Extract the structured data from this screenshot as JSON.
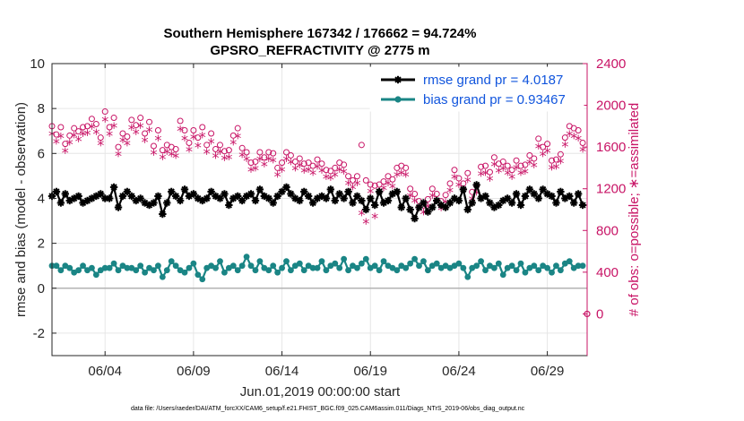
{
  "chart_data": {
    "type": "line",
    "title": "Southern Hemisphere 167342 / 176662 = 94.724%",
    "subtitle": "GPSRO_REFRACTIVITY @ 2775 m",
    "xlabel": "Jun.01,2019 00:00:00 start",
    "ylabel": "rmse and bias (model - observation)",
    "y2label": "# of obs: o=possible; ∗=assimilated",
    "footnote": "data file: /Users/raeder/DAI/ATM_forcXX/CAM6_setup/f.e21.FHIST_BGC.f09_025.CAM6assim.011/Diags_NTrS_2019-06/obs_diag_output.nc",
    "xlim": [
      1,
      31.25
    ],
    "ylim": [
      -3,
      10
    ],
    "y2lim": [
      -400,
      2400
    ],
    "x_ticks": [
      4,
      9,
      14,
      19,
      24,
      29
    ],
    "x_tick_labels": [
      "06/04",
      "06/09",
      "06/14",
      "06/19",
      "06/24",
      "06/29"
    ],
    "y_ticks": [
      "-2",
      "0",
      "2",
      "4",
      "6",
      "8",
      "10"
    ],
    "y2_ticks": [
      "0",
      "400",
      "800",
      "1200",
      "1600",
      "2000",
      "2400"
    ],
    "grid": true,
    "legend_position": "top-right",
    "series": [
      {
        "name": "rmse",
        "legend": "rmse grand pr = 4.0187",
        "color": "#000000",
        "axis": "left",
        "x": [
          1.0,
          1.25,
          1.5,
          1.75,
          2.0,
          2.25,
          2.5,
          2.75,
          3.0,
          3.25,
          3.5,
          3.75,
          4.0,
          4.25,
          4.5,
          4.75,
          5.0,
          5.25,
          5.5,
          5.75,
          6.0,
          6.25,
          6.5,
          6.75,
          7.0,
          7.25,
          7.5,
          7.75,
          8.0,
          8.25,
          8.5,
          8.75,
          9.0,
          9.25,
          9.5,
          9.75,
          10.0,
          10.25,
          10.5,
          10.75,
          11.0,
          11.25,
          11.5,
          11.75,
          12.0,
          12.25,
          12.5,
          12.75,
          13.0,
          13.25,
          13.5,
          13.75,
          14.0,
          14.25,
          14.5,
          14.75,
          15.0,
          15.25,
          15.5,
          15.75,
          16.0,
          16.25,
          16.5,
          16.75,
          17.0,
          17.25,
          17.5,
          17.75,
          18.0,
          18.25,
          18.5,
          18.75,
          19.0,
          19.25,
          19.5,
          19.75,
          20.0,
          20.25,
          20.5,
          20.75,
          21.0,
          21.25,
          21.5,
          21.75,
          22.0,
          22.25,
          22.5,
          22.75,
          23.0,
          23.25,
          23.5,
          23.75,
          24.0,
          24.25,
          24.5,
          24.75,
          25.0,
          25.25,
          25.5,
          25.75,
          26.0,
          26.25,
          26.5,
          26.75,
          27.0,
          27.25,
          27.5,
          27.75,
          28.0,
          28.25,
          28.5,
          28.75,
          29.0,
          29.25,
          29.5,
          29.75,
          30.0,
          30.25,
          30.5,
          30.75,
          31.0
        ],
        "values": [
          4.1,
          4.3,
          3.8,
          4.2,
          3.9,
          4.0,
          4.1,
          3.8,
          3.9,
          4.0,
          4.1,
          4.2,
          4.0,
          4.0,
          4.5,
          3.6,
          4.1,
          4.3,
          4.1,
          3.9,
          4.0,
          3.8,
          3.7,
          3.8,
          4.1,
          3.3,
          3.8,
          4.3,
          4.1,
          3.9,
          4.4,
          4.1,
          4.2,
          4.0,
          3.9,
          4.0,
          4.3,
          4.1,
          4.0,
          4.2,
          3.7,
          4.0,
          4.1,
          3.9,
          4.1,
          4.2,
          3.9,
          4.4,
          4.1,
          4.0,
          3.8,
          4.1,
          4.3,
          4.5,
          4.2,
          4.0,
          3.9,
          4.3,
          4.1,
          3.8,
          4.0,
          4.1,
          4.0,
          4.4,
          3.9,
          4.2,
          4.0,
          4.3,
          3.8,
          4.1,
          3.9,
          3.5,
          4.0,
          3.7,
          4.3,
          3.8,
          3.9,
          4.2,
          4.3,
          3.6,
          4.0,
          3.5,
          3.1,
          3.6,
          3.8,
          3.4,
          3.6,
          3.9,
          3.7,
          3.6,
          3.8,
          4.0,
          3.9,
          4.4,
          3.5,
          3.8,
          4.6,
          4.0,
          4.1,
          3.8,
          3.6,
          3.7,
          3.9,
          4.0,
          3.8,
          4.2,
          3.7,
          4.1,
          4.4,
          4.2,
          4.0,
          4.4,
          4.2,
          4.1,
          3.8,
          4.3,
          4.0,
          4.1,
          3.8,
          4.2,
          3.7
        ],
        "grand_mean": 4.0187
      },
      {
        "name": "bias",
        "legend": "bias grand pr = 0.93467",
        "color": "#1a8585",
        "axis": "left",
        "x": [
          1.0,
          1.25,
          1.5,
          1.75,
          2.0,
          2.25,
          2.5,
          2.75,
          3.0,
          3.25,
          3.5,
          3.75,
          4.0,
          4.25,
          4.5,
          4.75,
          5.0,
          5.25,
          5.5,
          5.75,
          6.0,
          6.25,
          6.5,
          6.75,
          7.0,
          7.25,
          7.5,
          7.75,
          8.0,
          8.25,
          8.5,
          8.75,
          9.0,
          9.25,
          9.5,
          9.75,
          10.0,
          10.25,
          10.5,
          10.75,
          11.0,
          11.25,
          11.5,
          11.75,
          12.0,
          12.25,
          12.5,
          12.75,
          13.0,
          13.25,
          13.5,
          13.75,
          14.0,
          14.25,
          14.5,
          14.75,
          15.0,
          15.25,
          15.5,
          15.75,
          16.0,
          16.25,
          16.5,
          16.75,
          17.0,
          17.25,
          17.5,
          17.75,
          18.0,
          18.25,
          18.5,
          18.75,
          19.0,
          19.25,
          19.5,
          19.75,
          20.0,
          20.25,
          20.5,
          20.75,
          21.0,
          21.25,
          21.5,
          21.75,
          22.0,
          22.25,
          22.5,
          22.75,
          23.0,
          23.25,
          23.5,
          23.75,
          24.0,
          24.25,
          24.5,
          24.75,
          25.0,
          25.25,
          25.5,
          25.75,
          26.0,
          26.25,
          26.5,
          26.75,
          27.0,
          27.25,
          27.5,
          27.75,
          28.0,
          28.25,
          28.5,
          28.75,
          29.0,
          29.25,
          29.5,
          29.75,
          30.0,
          30.25,
          30.5,
          30.75,
          31.0
        ],
        "values": [
          1.0,
          1.0,
          0.8,
          1.0,
          0.9,
          0.7,
          0.8,
          1.0,
          0.8,
          0.9,
          0.6,
          0.8,
          0.9,
          0.9,
          1.1,
          0.8,
          1.0,
          0.9,
          0.9,
          0.8,
          1.0,
          0.7,
          0.9,
          0.8,
          1.0,
          0.5,
          0.8,
          1.2,
          1.0,
          0.8,
          0.7,
          0.9,
          1.1,
          0.6,
          0.4,
          0.9,
          1.0,
          0.9,
          1.2,
          0.7,
          0.9,
          1.0,
          0.8,
          1.0,
          1.4,
          1.0,
          0.8,
          1.2,
          0.9,
          0.8,
          1.0,
          0.7,
          0.9,
          1.2,
          0.8,
          1.0,
          1.1,
          0.8,
          1.0,
          0.9,
          0.9,
          1.2,
          0.8,
          1.0,
          1.1,
          0.9,
          1.3,
          0.8,
          1.0,
          0.9,
          1.1,
          1.3,
          0.9,
          1.0,
          0.8,
          1.2,
          1.0,
          0.9,
          0.8,
          1.0,
          0.9,
          1.1,
          1.3,
          1.0,
          1.2,
          0.8,
          1.0,
          1.1,
          0.9,
          1.0,
          0.9,
          1.0,
          1.1,
          0.9,
          0.5,
          0.9,
          1.0,
          1.2,
          0.8,
          1.0,
          0.9,
          1.1,
          0.6,
          0.9,
          1.0,
          0.8,
          1.1,
          0.7,
          0.9,
          1.0,
          0.8,
          1.0,
          0.9,
          0.7,
          1.0,
          0.8,
          1.1,
          1.2,
          0.9,
          1.0,
          1.0
        ],
        "grand_mean": 0.93467
      },
      {
        "name": "obs possible",
        "marker": "o",
        "color": "#c81466",
        "axis": "right",
        "x": [
          1.0,
          1.25,
          1.5,
          1.75,
          2.0,
          2.25,
          2.5,
          2.75,
          3.0,
          3.25,
          3.5,
          3.75,
          4.0,
          4.25,
          4.5,
          4.75,
          5.0,
          5.25,
          5.5,
          5.75,
          6.0,
          6.25,
          6.5,
          6.75,
          7.0,
          7.25,
          7.5,
          7.75,
          8.0,
          8.25,
          8.5,
          8.75,
          9.0,
          9.25,
          9.5,
          9.75,
          10.0,
          10.25,
          10.5,
          10.75,
          11.0,
          11.25,
          11.5,
          11.75,
          12.0,
          12.25,
          12.5,
          12.75,
          13.0,
          13.25,
          13.5,
          13.75,
          14.0,
          14.25,
          14.5,
          14.75,
          15.0,
          15.25,
          15.5,
          15.75,
          16.0,
          16.25,
          16.5,
          16.75,
          17.0,
          17.25,
          17.5,
          17.75,
          18.0,
          18.25,
          18.5,
          18.75,
          19.0,
          19.25,
          19.5,
          19.75,
          20.0,
          20.25,
          20.5,
          20.75,
          21.0,
          21.25,
          21.5,
          21.75,
          22.0,
          22.25,
          22.5,
          22.75,
          23.0,
          23.25,
          23.5,
          23.75,
          24.0,
          24.25,
          24.5,
          24.75,
          25.0,
          25.25,
          25.5,
          25.75,
          26.0,
          26.25,
          26.5,
          26.75,
          27.0,
          27.25,
          27.5,
          27.75,
          28.0,
          28.25,
          28.5,
          28.75,
          29.0,
          29.25,
          29.5,
          29.75,
          30.0,
          30.25,
          30.5,
          30.75,
          31.0,
          31.25
        ],
        "values": [
          1800,
          1720,
          1790,
          1630,
          1710,
          1780,
          1750,
          1790,
          1800,
          1870,
          1820,
          1690,
          1940,
          1790,
          1880,
          1600,
          1730,
          1700,
          1860,
          1810,
          1880,
          1730,
          1840,
          1610,
          1760,
          1570,
          1620,
          1600,
          1580,
          1850,
          1760,
          1640,
          1760,
          1690,
          1790,
          1620,
          1730,
          1580,
          1620,
          1560,
          1570,
          1710,
          1780,
          1590,
          1550,
          1450,
          1460,
          1550,
          1500,
          1550,
          1540,
          1400,
          1450,
          1550,
          1520,
          1460,
          1490,
          1440,
          1450,
          1420,
          1480,
          1440,
          1380,
          1370,
          1400,
          1450,
          1430,
          1320,
          1280,
          1320,
          1620,
          1280,
          1240,
          1230,
          1240,
          1270,
          1320,
          1290,
          1400,
          1420,
          1400,
          1200,
          1150,
          1080,
          1040,
          1100,
          1200,
          1150,
          1080,
          1140,
          1250,
          1380,
          1300,
          1250,
          1350,
          1170,
          1230,
          1410,
          1420,
          1360,
          1500,
          1440,
          1460,
          1420,
          1380,
          1470,
          1420,
          1430,
          1520,
          1490,
          1680,
          1600,
          1630,
          1470,
          1480,
          1530,
          1690,
          1800,
          1780,
          1760,
          1640,
          -1
        ],
        "right_edge_value": 0
      },
      {
        "name": "obs assimilated",
        "marker": "*",
        "color": "#c81466",
        "axis": "right",
        "x": [
          1.0,
          1.25,
          1.5,
          1.75,
          2.0,
          2.25,
          2.5,
          2.75,
          3.0,
          3.25,
          3.5,
          3.75,
          4.0,
          4.25,
          4.5,
          4.75,
          5.0,
          5.25,
          5.5,
          5.75,
          6.0,
          6.25,
          6.5,
          6.75,
          7.0,
          7.25,
          7.5,
          7.75,
          8.0,
          8.25,
          8.5,
          8.75,
          9.0,
          9.25,
          9.5,
          9.75,
          10.0,
          10.25,
          10.5,
          10.75,
          11.0,
          11.25,
          11.5,
          11.75,
          12.0,
          12.25,
          12.5,
          12.75,
          13.0,
          13.25,
          13.5,
          13.75,
          14.0,
          14.25,
          14.5,
          14.75,
          15.0,
          15.25,
          15.5,
          15.75,
          16.0,
          16.25,
          16.5,
          16.75,
          17.0,
          17.25,
          17.5,
          17.75,
          18.0,
          18.25,
          18.5,
          18.75,
          19.0,
          19.25,
          19.5,
          19.75,
          20.0,
          20.25,
          20.5,
          20.75,
          21.0,
          21.25,
          21.5,
          21.75,
          22.0,
          22.25,
          22.5,
          22.75,
          23.0,
          23.25,
          23.5,
          23.75,
          24.0,
          24.25,
          24.5,
          24.75,
          25.0,
          25.25,
          25.5,
          25.75,
          26.0,
          26.25,
          26.5,
          26.75,
          27.0,
          27.25,
          27.5,
          27.75,
          28.0,
          28.25,
          28.5,
          28.75,
          29.0,
          29.25,
          29.5,
          29.75,
          30.0,
          30.25,
          30.5,
          30.75,
          31.0
        ],
        "values": [
          1720,
          1650,
          1700,
          1560,
          1640,
          1710,
          1670,
          1720,
          1730,
          1790,
          1740,
          1630,
          1860,
          1720,
          1800,
          1530,
          1660,
          1630,
          1780,
          1740,
          1800,
          1660,
          1760,
          1540,
          1680,
          1500,
          1550,
          1530,
          1510,
          1770,
          1680,
          1570,
          1690,
          1610,
          1710,
          1550,
          1650,
          1510,
          1550,
          1490,
          1500,
          1640,
          1700,
          1520,
          1480,
          1380,
          1390,
          1480,
          1430,
          1480,
          1470,
          1330,
          1380,
          1480,
          1450,
          1390,
          1420,
          1370,
          1380,
          1350,
          1410,
          1370,
          1310,
          1300,
          1330,
          1380,
          1360,
          1250,
          1210,
          1250,
          960,
          880,
          1170,
          930,
          1170,
          1200,
          1250,
          1220,
          1330,
          1350,
          1330,
          1130,
          1080,
          1010,
          970,
          1030,
          1130,
          1080,
          1010,
          1070,
          1180,
          1310,
          1230,
          1180,
          1280,
          1100,
          1160,
          1340,
          1350,
          1290,
          1430,
          1370,
          1390,
          1350,
          1310,
          1400,
          1350,
          1360,
          1450,
          1420,
          1600,
          1530,
          1560,
          1400,
          1410,
          1460,
          1620,
          1720,
          1700,
          1680,
          1570
        ]
      }
    ]
  }
}
